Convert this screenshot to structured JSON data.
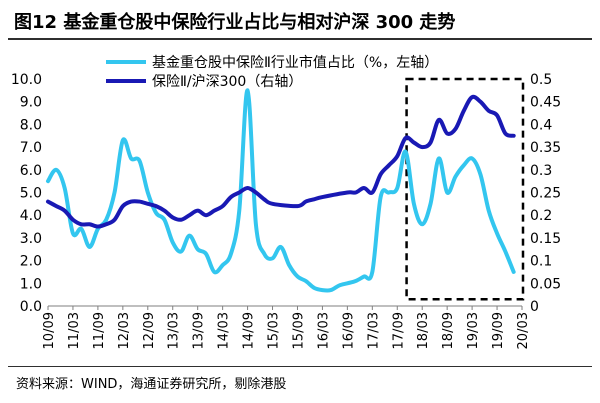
{
  "title": "图12 基金重仓股中保险行业占比与相对沪深 300 走势",
  "source": "资料来源：WIND，海通证券研究所，剔除港股",
  "colors": {
    "series_fund": "#33c6ef",
    "series_relative": "#1919b4",
    "box": "#000000"
  },
  "chart_data": {
    "type": "line",
    "x_labels": [
      "10/09",
      "11/03",
      "11/09",
      "12/03",
      "12/09",
      "13/03",
      "13/09",
      "14/03",
      "14/09",
      "15/03",
      "15/09",
      "16/03",
      "16/09",
      "17/03",
      "17/09",
      "18/03",
      "18/09",
      "19/03",
      "19/09",
      "20/03"
    ],
    "left_axis": {
      "min": 0,
      "max": 10,
      "ticks": [
        "0.0",
        "1.0",
        "2.0",
        "3.0",
        "4.0",
        "5.0",
        "6.0",
        "7.0",
        "8.0",
        "9.0",
        "10.0"
      ]
    },
    "right_axis": {
      "min": 0,
      "max": 0.5,
      "ticks": [
        "0",
        "0.05",
        "0.1",
        "0.15",
        "0.2",
        "0.25",
        "0.3",
        "0.35",
        "0.4",
        "0.45",
        "0.5"
      ]
    },
    "series": [
      {
        "name": "基金重仓股中保险Ⅱ行业市值占比（%，左轴）",
        "axis": "left",
        "points": [
          [
            "10/09",
            5.5
          ],
          [
            "2010-11",
            6.0
          ],
          [
            "2011-01",
            5.2
          ],
          [
            "11/03",
            3.2
          ],
          [
            "2011-05",
            3.4
          ],
          [
            "2011-07",
            2.6
          ],
          [
            "11/09",
            3.4
          ],
          [
            "2011-11",
            3.8
          ],
          [
            "2012-01",
            5.0
          ],
          [
            "12/03",
            7.3
          ],
          [
            "2012-05",
            6.5
          ],
          [
            "2012-07",
            6.4
          ],
          [
            "12/09",
            5.0
          ],
          [
            "2012-11",
            4.1
          ],
          [
            "2013-01",
            3.8
          ],
          [
            "13/03",
            2.8
          ],
          [
            "2013-05",
            2.4
          ],
          [
            "2013-07",
            3.1
          ],
          [
            "13/09",
            2.5
          ],
          [
            "2013-11",
            2.3
          ],
          [
            "2014-01",
            1.5
          ],
          [
            "14/03",
            1.8
          ],
          [
            "2014-05",
            2.3
          ],
          [
            "2014-07",
            4.2
          ],
          [
            "14/09",
            9.5
          ],
          [
            "2014-11",
            3.6
          ],
          [
            "2015-01",
            2.3
          ],
          [
            "15/03",
            2.1
          ],
          [
            "2015-05",
            2.6
          ],
          [
            "2015-07",
            1.8
          ],
          [
            "15/09",
            1.3
          ],
          [
            "2015-11",
            1.1
          ],
          [
            "2016-01",
            0.8
          ],
          [
            "16/03",
            0.7
          ],
          [
            "2016-05",
            0.7
          ],
          [
            "2016-07",
            0.9
          ],
          [
            "16/09",
            1.0
          ],
          [
            "2016-11",
            1.1
          ],
          [
            "2017-01",
            1.3
          ],
          [
            "17/03",
            1.5
          ],
          [
            "2017-05",
            4.8
          ],
          [
            "2017-07",
            5.0
          ],
          [
            "17/09",
            5.2
          ],
          [
            "2017-11",
            6.8
          ],
          [
            "2018-01",
            4.5
          ],
          [
            "18/03",
            3.6
          ],
          [
            "2018-05",
            4.5
          ],
          [
            "2018-07",
            6.5
          ],
          [
            "18/09",
            5.0
          ],
          [
            "2018-11",
            5.7
          ],
          [
            "2019-01",
            6.2
          ],
          [
            "19/03",
            6.5
          ],
          [
            "2019-05",
            5.8
          ],
          [
            "2019-07",
            4.2
          ],
          [
            "19/09",
            3.2
          ],
          [
            "2019-11",
            2.4
          ],
          [
            "2020-01",
            1.5
          ]
        ]
      },
      {
        "name": "保险Ⅱ/沪深300（右轴）",
        "axis": "right",
        "points": [
          [
            "10/09",
            0.23
          ],
          [
            "2010-11",
            0.22
          ],
          [
            "2011-01",
            0.21
          ],
          [
            "11/03",
            0.19
          ],
          [
            "2011-05",
            0.18
          ],
          [
            "2011-07",
            0.18
          ],
          [
            "11/09",
            0.175
          ],
          [
            "2011-11",
            0.18
          ],
          [
            "2012-01",
            0.19
          ],
          [
            "12/03",
            0.22
          ],
          [
            "2012-05",
            0.23
          ],
          [
            "2012-07",
            0.23
          ],
          [
            "12/09",
            0.225
          ],
          [
            "2012-11",
            0.22
          ],
          [
            "2013-01",
            0.21
          ],
          [
            "13/03",
            0.195
          ],
          [
            "2013-05",
            0.19
          ],
          [
            "2013-07",
            0.2
          ],
          [
            "13/09",
            0.21
          ],
          [
            "2013-11",
            0.2
          ],
          [
            "2014-01",
            0.21
          ],
          [
            "14/03",
            0.22
          ],
          [
            "2014-05",
            0.24
          ],
          [
            "2014-07",
            0.25
          ],
          [
            "14/09",
            0.26
          ],
          [
            "2014-11",
            0.25
          ],
          [
            "2015-01",
            0.235
          ],
          [
            "15/03",
            0.225
          ],
          [
            "15/09",
            0.22
          ],
          [
            "2015-11",
            0.23
          ],
          [
            "2016-01",
            0.235
          ],
          [
            "16/03",
            0.24
          ],
          [
            "16/09",
            0.25
          ],
          [
            "2016-11",
            0.25
          ],
          [
            "2017-01",
            0.26
          ],
          [
            "17/03",
            0.25
          ],
          [
            "2017-05",
            0.29
          ],
          [
            "2017-07",
            0.31
          ],
          [
            "17/09",
            0.33
          ],
          [
            "2017-11",
            0.37
          ],
          [
            "2018-01",
            0.36
          ],
          [
            "18/03",
            0.35
          ],
          [
            "2018-05",
            0.36
          ],
          [
            "2018-07",
            0.41
          ],
          [
            "18/09",
            0.38
          ],
          [
            "2018-11",
            0.39
          ],
          [
            "2019-01",
            0.43
          ],
          [
            "19/03",
            0.46
          ],
          [
            "2019-05",
            0.45
          ],
          [
            "2019-07",
            0.43
          ],
          [
            "19/09",
            0.42
          ],
          [
            "2019-11",
            0.38
          ],
          [
            "2020-01",
            0.375
          ]
        ]
      }
    ],
    "annotation": {
      "type": "dashed-box",
      "from": "2017-11",
      "to": "20/03"
    }
  }
}
